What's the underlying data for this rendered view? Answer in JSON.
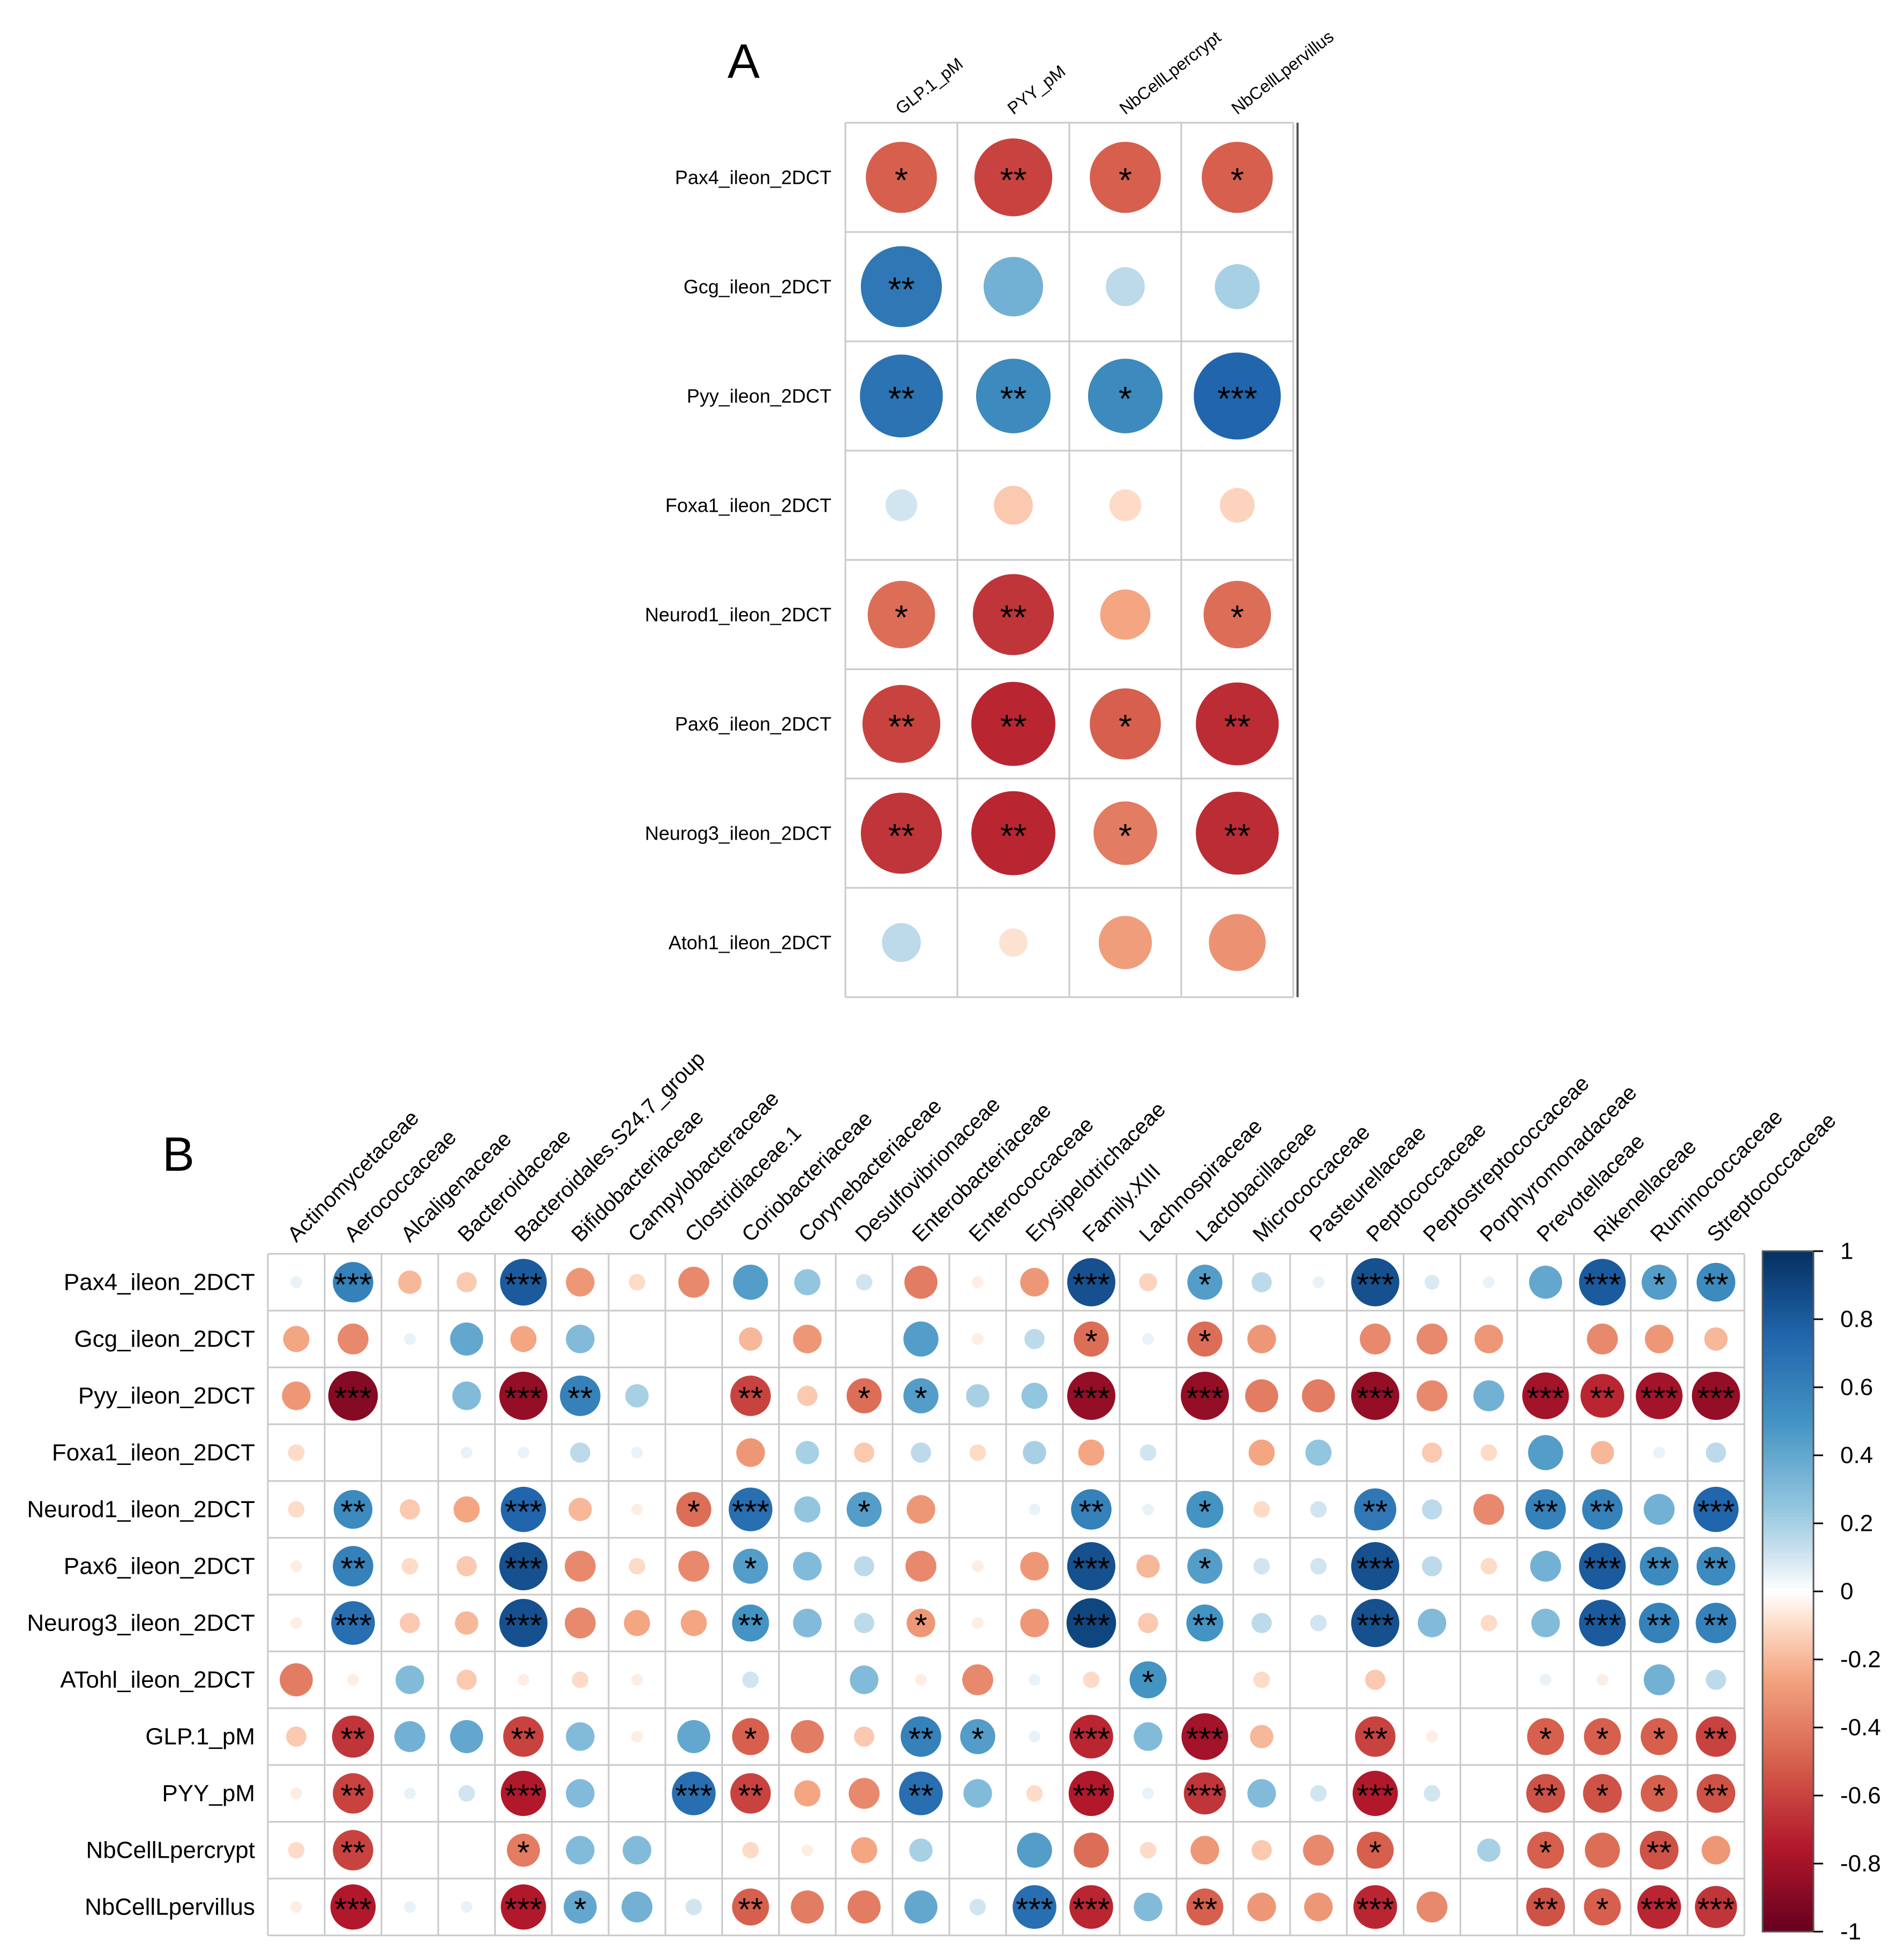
{
  "panel_a": {
    "letter": "A",
    "columns": [
      "GLP.1_pM",
      "PYY_pM",
      "NbCellLpercrypt",
      "NbCellLpervillus"
    ],
    "rows": [
      "Pax4_ileon_2DCT",
      "Gcg_ileon_2DCT",
      "Pyy_ileon_2DCT",
      "Foxa1_ileon_2DCT",
      "Neurod1_ileon_2DCT",
      "Pax6_ileon_2DCT",
      "Neurog3_ileon_2DCT",
      "Atoh1_ileon_2DCT"
    ]
  },
  "panel_b": {
    "letter": "B",
    "columns": [
      "Actinomycetaceae",
      "Aerococcaceae",
      "Alcaligenaceae",
      "Bacteroidaceae",
      "Bacteroidales.S24.7_group",
      "Bifidobacteriaceae",
      "Campylobacteraceae",
      "Clostridiaceae.1",
      "Coriobacteriaceae",
      "Corynebacteriaceae",
      "Desulfovibrionaceae",
      "Enterobacteriaceae",
      "Enterococcaceae",
      "Erysipelotrichaceae",
      "Family.XIII",
      "Lachnospiraceae",
      "Lactobacillaceae",
      "Micrococcaceae",
      "Pasteurellaceae",
      "Peptococcaceae",
      "Peptostreptococcaceae",
      "Porphyromonadaceae",
      "Prevotellaceae",
      "Rikenellaceae",
      "Ruminococcaceae",
      "Streptococcaceae"
    ],
    "rows": [
      "Pax4_ileon_2DCT",
      "Gcg_ileon_2DCT",
      "Pyy_ileon_2DCT",
      "Foxa1_ileon_2DCT",
      "Neurod1_ileon_2DCT",
      "Pax6_ileon_2DCT",
      "Neurog3_ileon_2DCT",
      "ATohl_ileon_2DCT",
      "GLP.1_pM",
      "PYY_pM",
      "NbCellLpercrypt",
      "NbCellLpervillus"
    ]
  },
  "legend": {
    "ticks": [
      "1",
      "0.8",
      "0.6",
      "0.4",
      "0.2",
      "0",
      "-0.2",
      "-0.4",
      "-0.6",
      "-0.8",
      "-1"
    ]
  },
  "chart_data": [
    {
      "type": "heatmap",
      "title": "A",
      "x": [
        "GLP.1_pM",
        "PYY_pM",
        "NbCellLpercrypt",
        "NbCellLpervillus"
      ],
      "y": [
        "Pax4_ileon_2DCT",
        "Gcg_ileon_2DCT",
        "Pyy_ileon_2DCT",
        "Foxa1_ileon_2DCT",
        "Neurod1_ileon_2DCT",
        "Pax6_ileon_2DCT",
        "Neurog3_ileon_2DCT",
        "Atoh1_ileon_2DCT"
      ],
      "values": [
        [
          -0.5,
          -0.6,
          -0.5,
          -0.5
        ],
        [
          0.65,
          0.35,
          0.15,
          0.2
        ],
        [
          0.68,
          0.55,
          0.55,
          0.75
        ],
        [
          0.1,
          -0.15,
          -0.1,
          -0.12
        ],
        [
          -0.45,
          -0.65,
          -0.25,
          -0.45
        ],
        [
          -0.6,
          -0.7,
          -0.5,
          -0.68
        ],
        [
          -0.65,
          -0.7,
          -0.4,
          -0.68
        ],
        [
          0.15,
          -0.08,
          -0.28,
          -0.32
        ]
      ],
      "significance": [
        [
          "*",
          "**",
          "*",
          "*"
        ],
        [
          "**",
          "",
          "",
          ""
        ],
        [
          "**",
          "**",
          "*",
          "***"
        ],
        [
          "",
          "",
          "",
          ""
        ],
        [
          "*",
          "**",
          "",
          "*"
        ],
        [
          "**",
          "**",
          "*",
          "**"
        ],
        [
          "**",
          "**",
          "*",
          "**"
        ],
        [
          "",
          "",
          "",
          ""
        ]
      ],
      "color_range": [
        -1,
        1
      ]
    },
    {
      "type": "heatmap",
      "title": "B",
      "x": [
        "Actinomycetaceae",
        "Aerococcaceae",
        "Alcaligenaceae",
        "Bacteroidaceae",
        "Bacteroidales.S24.7_group",
        "Bifidobacteriaceae",
        "Campylobacteraceae",
        "Clostridiaceae.1",
        "Coriobacteriaceae",
        "Corynebacteriaceae",
        "Desulfovibrionaceae",
        "Enterobacteriaceae",
        "Enterococcaceae",
        "Erysipelotrichaceae",
        "Family.XIII",
        "Lachnospiraceae",
        "Lactobacillaceae",
        "Micrococcaceae",
        "Pasteurellaceae",
        "Peptococcaceae",
        "Peptostreptococcaceae",
        "Porphyromonadaceae",
        "Prevotellaceae",
        "Rikenellaceae",
        "Ruminococcaceae",
        "Streptococcaceae"
      ],
      "y": [
        "Pax4_ileon_2DCT",
        "Gcg_ileon_2DCT",
        "Pyy_ileon_2DCT",
        "Foxa1_ileon_2DCT",
        "Neurod1_ileon_2DCT",
        "Pax6_ileon_2DCT",
        "Neurog3_ileon_2DCT",
        "ATohl_ileon_2DCT",
        "GLP.1_pM",
        "PYY_pM",
        "NbCellLpercrypt",
        "NbCellLpervillus"
      ],
      "values": [
        [
          0.05,
          0.6,
          -0.2,
          -0.15,
          0.8,
          -0.3,
          -0.1,
          -0.35,
          0.45,
          0.25,
          0.1,
          -0.4,
          -0.05,
          -0.3,
          0.85,
          -0.12,
          0.45,
          0.15,
          0.05,
          0.85,
          0.08,
          0.05,
          0.4,
          0.8,
          0.45,
          0.55
        ],
        [
          -0.25,
          -0.35,
          0.05,
          0.4,
          -0.25,
          0.3,
          0,
          0,
          -0.2,
          -0.3,
          0,
          0.45,
          -0.05,
          0.15,
          -0.45,
          0.05,
          -0.45,
          -0.3,
          0,
          -0.35,
          -0.35,
          -0.3,
          0,
          -0.35,
          -0.3,
          -0.2
        ],
        [
          -0.3,
          -0.9,
          0,
          0.3,
          -0.85,
          0.6,
          0.2,
          0,
          -0.6,
          -0.15,
          -0.45,
          0.45,
          0.2,
          0.25,
          -0.85,
          0,
          -0.85,
          -0.4,
          -0.4,
          -0.85,
          -0.35,
          0.35,
          -0.8,
          -0.7,
          -0.8,
          -0.85
        ],
        [
          -0.1,
          0,
          0,
          0.05,
          0.05,
          0.15,
          0.05,
          0,
          -0.3,
          0.2,
          -0.15,
          0.15,
          -0.1,
          0.2,
          -0.25,
          0.1,
          0,
          -0.25,
          0.25,
          0,
          -0.15,
          -0.1,
          0.45,
          -0.2,
          0.05,
          0.15
        ],
        [
          -0.1,
          0.55,
          -0.15,
          -0.25,
          0.75,
          -0.2,
          -0.05,
          -0.45,
          0.7,
          0.25,
          0.45,
          -0.3,
          0,
          0.05,
          0.6,
          0.05,
          0.5,
          -0.1,
          0.1,
          0.65,
          0.15,
          -0.35,
          0.6,
          0.6,
          0.35,
          0.75
        ],
        [
          -0.05,
          0.6,
          -0.1,
          -0.15,
          0.85,
          -0.35,
          -0.1,
          -0.35,
          0.45,
          0.3,
          0.15,
          -0.35,
          -0.05,
          -0.3,
          0.85,
          -0.2,
          0.45,
          0.1,
          0.1,
          0.85,
          0.15,
          -0.1,
          0.35,
          0.8,
          0.55,
          0.55
        ],
        [
          -0.05,
          0.7,
          -0.15,
          -0.2,
          0.85,
          -0.35,
          -0.25,
          -0.25,
          0.5,
          0.3,
          0.15,
          -0.3,
          -0.05,
          -0.3,
          0.9,
          -0.15,
          0.5,
          0.15,
          0.1,
          0.85,
          0.3,
          -0.1,
          0.3,
          0.8,
          0.6,
          0.6
        ],
        [
          -0.4,
          -0.05,
          0.3,
          -0.15,
          -0.05,
          -0.1,
          -0.05,
          0,
          0.1,
          0,
          0.3,
          -0.05,
          -0.35,
          0.05,
          -0.1,
          0.5,
          0,
          -0.1,
          0,
          -0.15,
          0,
          0,
          0.05,
          -0.05,
          0.35,
          0.15
        ],
        [
          -0.15,
          -0.65,
          0.35,
          0.4,
          -0.6,
          0.3,
          -0.05,
          0.4,
          -0.5,
          -0.4,
          -0.15,
          0.6,
          0.45,
          0.05,
          -0.7,
          0.3,
          -0.8,
          -0.2,
          0,
          -0.6,
          -0.05,
          0,
          -0.5,
          -0.5,
          -0.5,
          -0.6
        ],
        [
          -0.05,
          -0.6,
          0.05,
          0.1,
          -0.75,
          0.3,
          0,
          0.7,
          -0.6,
          -0.25,
          -0.35,
          0.7,
          0.3,
          -0.1,
          -0.75,
          0.05,
          -0.65,
          0.3,
          0.1,
          -0.75,
          0.1,
          0,
          -0.55,
          -0.55,
          -0.5,
          -0.55
        ],
        [
          -0.1,
          -0.6,
          0,
          0,
          -0.4,
          0.3,
          0.3,
          0,
          -0.1,
          -0.05,
          -0.25,
          0.2,
          0,
          0.45,
          -0.45,
          -0.1,
          -0.3,
          -0.15,
          -0.35,
          -0.5,
          0,
          0.2,
          -0.5,
          -0.45,
          -0.55,
          -0.3
        ],
        [
          -0.05,
          -0.75,
          0.05,
          0.05,
          -0.75,
          0.4,
          0.35,
          0.1,
          -0.5,
          -0.4,
          -0.4,
          0.4,
          0.1,
          0.7,
          -0.7,
          0.3,
          -0.5,
          -0.3,
          -0.3,
          -0.7,
          -0.35,
          0,
          -0.55,
          -0.5,
          -0.7,
          -0.65
        ]
      ],
      "significance": [
        [
          "",
          "***",
          "",
          "",
          "***",
          "",
          "",
          "",
          "",
          "",
          "",
          "",
          "",
          "",
          "***",
          "",
          "*",
          "",
          "",
          "***",
          "",
          "",
          "",
          "***",
          "*",
          "**"
        ],
        [
          "",
          "",
          "",
          "",
          "",
          "",
          "",
          "",
          "",
          "",
          "",
          "",
          "",
          "",
          "*",
          "",
          "*",
          "",
          "",
          "",
          "",
          "",
          "",
          "",
          "",
          ""
        ],
        [
          "",
          "***",
          "",
          "",
          "***",
          "**",
          "",
          "",
          "**",
          "",
          "*",
          "*",
          "",
          "",
          "***",
          "",
          "***",
          "",
          "",
          "***",
          "",
          "",
          "***",
          "**",
          "***",
          "***"
        ],
        [
          "",
          "",
          "",
          "",
          "",
          "",
          "",
          "",
          "",
          "",
          "",
          "",
          "",
          "",
          "",
          "",
          "",
          "",
          "",
          "",
          "",
          "",
          "",
          "",
          "",
          ""
        ],
        [
          "",
          "**",
          "",
          "",
          "***",
          "",
          "",
          "*",
          "***",
          "",
          "*",
          "",
          "",
          "",
          "**",
          "",
          "*",
          "",
          "",
          "**",
          "",
          "",
          "**",
          "**",
          "",
          "***"
        ],
        [
          "",
          "**",
          "",
          "",
          "***",
          "",
          "",
          "",
          "*",
          "",
          "",
          "",
          "",
          "",
          "***",
          "",
          "*",
          "",
          "",
          "***",
          "",
          "",
          "",
          "***",
          "**",
          "**"
        ],
        [
          "",
          "***",
          "",
          "",
          "***",
          "",
          "",
          "",
          "**",
          "",
          "",
          "*",
          "",
          "",
          "***",
          "",
          "**",
          "",
          "",
          "***",
          "",
          "",
          "",
          "***",
          "**",
          "**"
        ],
        [
          "",
          "",
          "",
          "",
          "",
          "",
          "",
          "",
          "",
          "",
          "",
          "",
          "",
          "",
          "",
          "*",
          "",
          "",
          "",
          "",
          "",
          "",
          "",
          "",
          "",
          ""
        ],
        [
          "",
          "**",
          "",
          "",
          "**",
          "",
          "",
          "",
          "*",
          "",
          "",
          "**",
          "*",
          "",
          "***",
          "",
          "***",
          "",
          "",
          "**",
          "",
          "",
          "*",
          "*",
          "*",
          "**"
        ],
        [
          "",
          "**",
          "",
          "",
          "***",
          "",
          "",
          "***",
          "**",
          "",
          "",
          "**",
          "",
          "",
          "***",
          "",
          "***",
          "",
          "",
          "***",
          "",
          "",
          "**",
          "*",
          "*",
          "**"
        ],
        [
          "",
          "**",
          "",
          "",
          "*",
          "",
          "",
          "",
          "",
          "",
          "",
          "",
          "",
          "",
          "",
          "",
          "",
          "",
          "",
          "*",
          "",
          "",
          "*",
          "",
          "**",
          ""
        ],
        [
          "",
          "***",
          "",
          "",
          "***",
          "*",
          "",
          "",
          "**",
          "",
          "",
          "",
          "",
          "***",
          "***",
          "",
          "**",
          "",
          "",
          "***",
          "",
          "",
          "**",
          "*",
          "***",
          "***"
        ]
      ],
      "color_range": [
        -1,
        1
      ],
      "legend": {
        "min": -1,
        "max": 1,
        "ticks": [
          1,
          0.8,
          0.6,
          0.4,
          0.2,
          0,
          -0.2,
          -0.4,
          -0.6,
          -0.8,
          -1
        ]
      }
    }
  ]
}
